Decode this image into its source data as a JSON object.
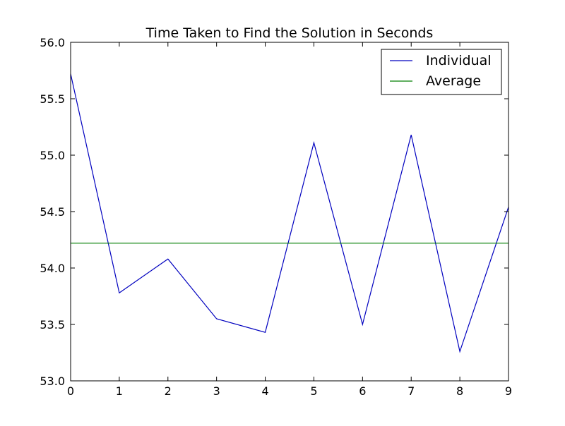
{
  "chart_data": {
    "type": "line",
    "title": "Time Taken to Find the Solution in Seconds",
    "xlabel": "",
    "ylabel": "",
    "xlim": [
      0,
      9
    ],
    "ylim": [
      53.0,
      56.0
    ],
    "x_ticks": [
      0,
      1,
      2,
      3,
      4,
      5,
      6,
      7,
      8,
      9
    ],
    "y_ticks": [
      53.0,
      53.5,
      54.0,
      54.5,
      55.0,
      55.5,
      56.0
    ],
    "x_tick_labels": [
      "0",
      "1",
      "2",
      "3",
      "4",
      "5",
      "6",
      "7",
      "8",
      "9"
    ],
    "y_tick_labels": [
      "53.0",
      "53.5",
      "54.0",
      "54.5",
      "55.0",
      "55.5",
      "56.0"
    ],
    "grid": false,
    "legend_position": "top-right",
    "x": [
      0,
      1,
      2,
      3,
      4,
      5,
      6,
      7,
      8,
      9
    ],
    "series": [
      {
        "name": "Individual",
        "color": "#0000bf",
        "values": [
          55.72,
          53.78,
          54.08,
          53.55,
          53.43,
          55.11,
          53.5,
          55.18,
          53.26,
          54.54
        ]
      },
      {
        "name": "Average",
        "color": "#007f00",
        "values": [
          54.22,
          54.22,
          54.22,
          54.22,
          54.22,
          54.22,
          54.22,
          54.22,
          54.22,
          54.22
        ]
      }
    ]
  }
}
